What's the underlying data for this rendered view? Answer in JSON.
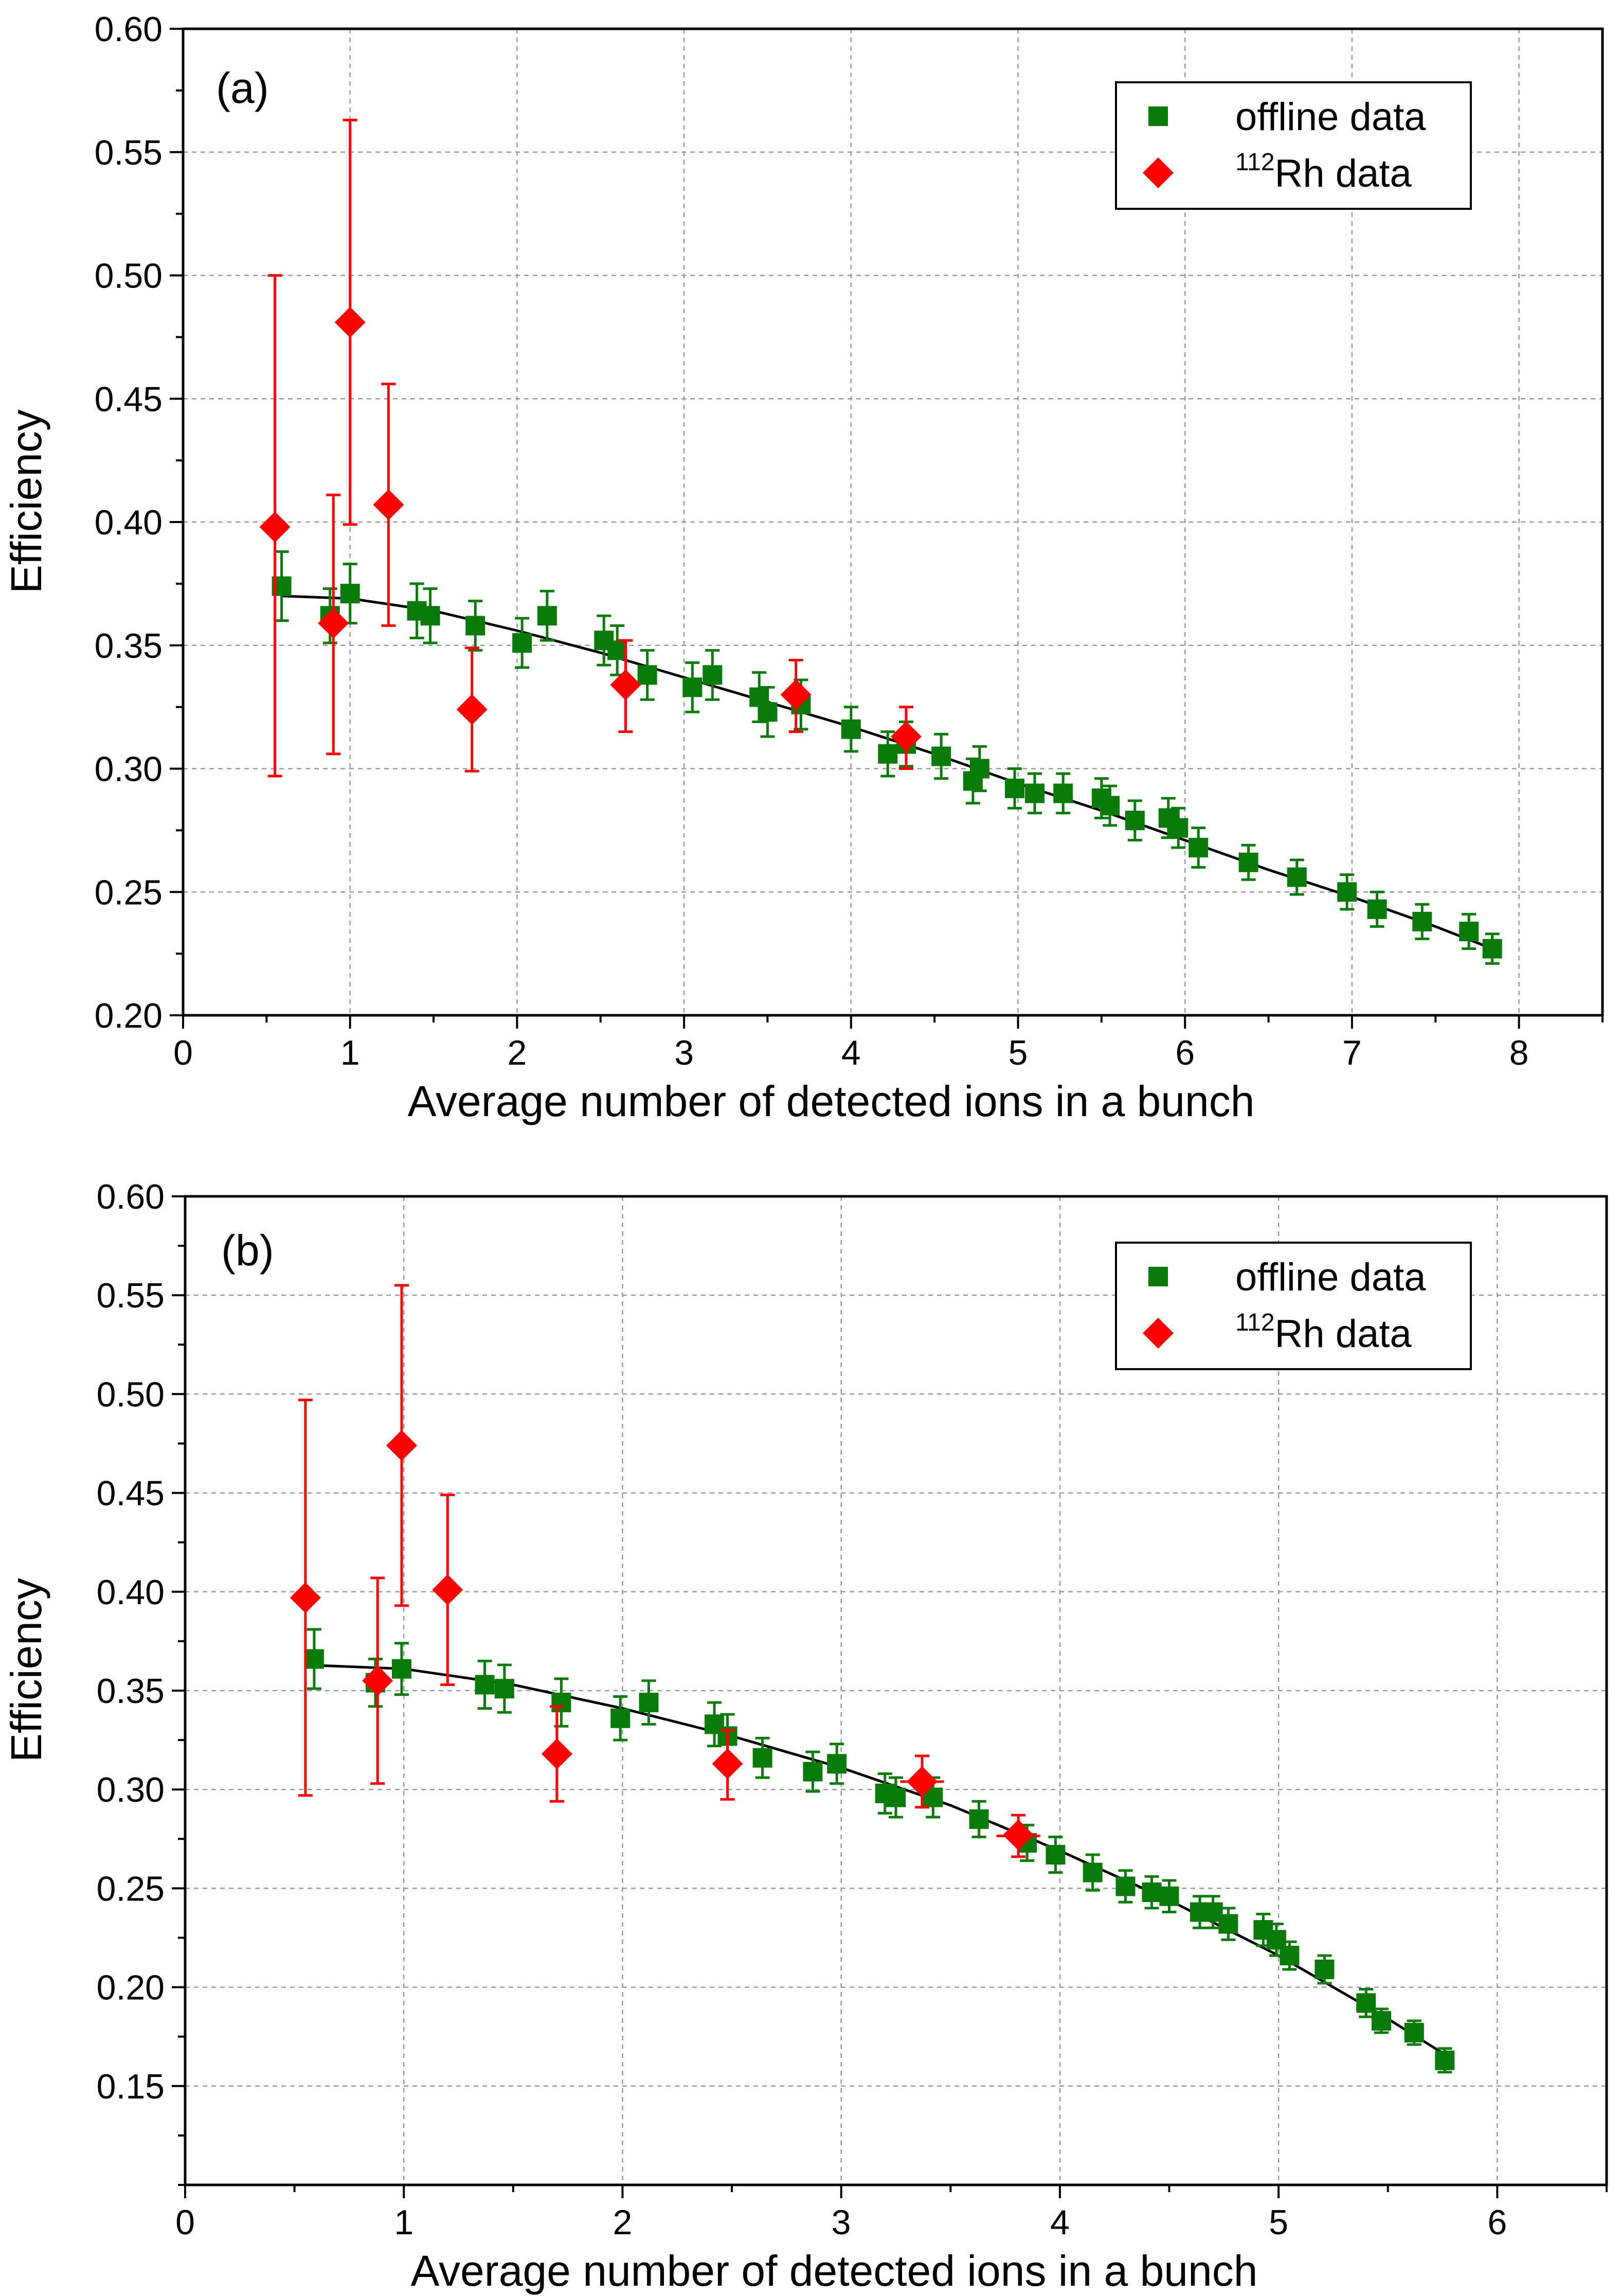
{
  "figure": {
    "panels": [
      "(a)",
      "(b)"
    ]
  },
  "colors": {
    "offline": "#0a7a0a",
    "rh": "#ff0000",
    "fit": "#000000",
    "grid": "#9a9a9a"
  },
  "chart_data": [
    {
      "type": "scatter",
      "panel_label": "(a)",
      "xlabel": "Average number of detected ions in a bunch",
      "ylabel": "Efficiency",
      "xlim": [
        0,
        8.5
      ],
      "ylim": [
        0.2,
        0.6
      ],
      "xticks": [
        0,
        1,
        2,
        3,
        4,
        5,
        6,
        7,
        8
      ],
      "xtick_labels": [
        "0",
        "1",
        "2",
        "3",
        "4",
        "5",
        "6",
        "7",
        "8"
      ],
      "yticks": [
        0.2,
        0.25,
        0.3,
        0.35,
        0.4,
        0.45,
        0.5,
        0.55,
        0.6
      ],
      "ytick_labels": [
        "0.20",
        "0.25",
        "0.30",
        "0.35",
        "0.40",
        "0.45",
        "0.50",
        "0.55",
        "0.60"
      ],
      "grid": true,
      "legend": {
        "position": "top-right",
        "entries": [
          {
            "series": "offline",
            "label": "offline data"
          },
          {
            "series": "rh",
            "sup": "112",
            "label": "Rh data"
          }
        ]
      },
      "series": [
        {
          "name": "offline data",
          "marker": "square",
          "x": [
            0.59,
            0.88,
            1.0,
            1.4,
            1.48,
            1.75,
            2.03,
            2.18,
            2.52,
            2.6,
            2.78,
            3.05,
            3.17,
            3.45,
            3.5,
            3.7,
            4.0,
            4.22,
            4.33,
            4.54,
            4.73,
            4.77,
            4.98,
            5.1,
            5.27,
            5.5,
            5.55,
            5.7,
            5.9,
            5.96,
            6.08,
            6.38,
            6.67,
            6.97,
            7.15,
            7.42,
            7.7,
            7.84
          ],
          "y": [
            0.374,
            0.362,
            0.371,
            0.364,
            0.362,
            0.358,
            0.351,
            0.362,
            0.352,
            0.348,
            0.338,
            0.333,
            0.338,
            0.329,
            0.323,
            0.326,
            0.316,
            0.306,
            0.31,
            0.305,
            0.295,
            0.3,
            0.292,
            0.29,
            0.29,
            0.288,
            0.285,
            0.279,
            0.28,
            0.276,
            0.268,
            0.262,
            0.256,
            0.25,
            0.243,
            0.238,
            0.234,
            0.227
          ],
          "yerr": [
            0.014,
            0.011,
            0.012,
            0.011,
            0.011,
            0.01,
            0.01,
            0.01,
            0.01,
            0.01,
            0.01,
            0.01,
            0.01,
            0.01,
            0.01,
            0.01,
            0.009,
            0.009,
            0.009,
            0.009,
            0.009,
            0.009,
            0.008,
            0.008,
            0.008,
            0.008,
            0.008,
            0.008,
            0.008,
            0.008,
            0.008,
            0.007,
            0.007,
            0.007,
            0.007,
            0.007,
            0.007,
            0.006
          ],
          "xerr": [
            0.0,
            0.03,
            0.03,
            0.03,
            0.03,
            0.03,
            0.03,
            0.03,
            0.03,
            0.03,
            0.03,
            0.03,
            0.03,
            0.03,
            0.03,
            0.03,
            0.03,
            0.03,
            0.03,
            0.03,
            0.03,
            0.03,
            0.03,
            0.03,
            0.03,
            0.03,
            0.03,
            0.03,
            0.03,
            0.03,
            0.03,
            0.03,
            0.03,
            0.03,
            0.03,
            0.03,
            0.03,
            0.03
          ]
        },
        {
          "name": "112Rh data",
          "marker": "diamond",
          "x": [
            0.55,
            0.9,
            1.0,
            1.23,
            1.73,
            2.65,
            3.67,
            4.33
          ],
          "y": [
            0.398,
            0.359,
            0.481,
            0.407,
            0.324,
            0.334,
            0.33,
            0.313
          ],
          "yerr_low": [
            0.101,
            0.053,
            0.082,
            0.049,
            0.025,
            0.019,
            0.015,
            0.013
          ],
          "yerr_high": [
            0.102,
            0.052,
            0.082,
            0.049,
            0.025,
            0.018,
            0.014,
            0.012
          ],
          "xerr": [
            0.0,
            0.02,
            0.0,
            0.0,
            0.04,
            0.04,
            0.08,
            0.08
          ]
        }
      ],
      "fit_curve": {
        "name": "fit",
        "x": [
          0.59,
          1.0,
          1.5,
          2.0,
          2.5,
          3.0,
          3.5,
          4.0,
          4.5,
          5.0,
          5.5,
          6.0,
          6.5,
          7.0,
          7.5,
          7.84
        ],
        "y": [
          0.37,
          0.369,
          0.364,
          0.356,
          0.347,
          0.337,
          0.327,
          0.317,
          0.306,
          0.294,
          0.283,
          0.271,
          0.259,
          0.248,
          0.236,
          0.227
        ]
      }
    },
    {
      "type": "scatter",
      "panel_label": "(b)",
      "xlabel": "Average number of detected ions in a bunch",
      "ylabel": "Efficiency",
      "xlim": [
        0,
        6.5
      ],
      "ylim": [
        0.1,
        0.6
      ],
      "xticks": [
        0,
        1,
        2,
        3,
        4,
        5,
        6
      ],
      "xtick_labels": [
        "0",
        "1",
        "2",
        "3",
        "4",
        "5",
        "6"
      ],
      "yticks": [
        0.15,
        0.2,
        0.25,
        0.3,
        0.35,
        0.4,
        0.45,
        0.5,
        0.55,
        0.6
      ],
      "ytick_labels": [
        "0.15",
        "0.20",
        "0.25",
        "0.30",
        "0.35",
        "0.40",
        "0.45",
        "0.50",
        "0.55",
        "0.60"
      ],
      "grid": true,
      "legend": {
        "position": "top-right",
        "entries": [
          {
            "series": "offline",
            "label": "offline data"
          },
          {
            "series": "rh",
            "sup": "112",
            "label": "Rh data"
          }
        ]
      },
      "series": [
        {
          "name": "offline data",
          "marker": "square",
          "x": [
            0.59,
            0.87,
            0.99,
            1.37,
            1.46,
            1.72,
            1.99,
            2.12,
            2.42,
            2.48,
            2.64,
            2.87,
            2.98,
            3.2,
            3.25,
            3.42,
            3.63,
            3.85,
            3.98,
            4.15,
            4.3,
            4.42,
            4.5,
            4.64,
            4.7,
            4.77,
            4.93,
            4.99,
            5.05,
            5.21,
            5.4,
            5.47,
            5.62,
            5.76
          ],
          "y": [
            0.366,
            0.354,
            0.361,
            0.353,
            0.351,
            0.344,
            0.336,
            0.344,
            0.333,
            0.327,
            0.316,
            0.309,
            0.313,
            0.298,
            0.296,
            0.296,
            0.285,
            0.273,
            0.267,
            0.258,
            0.251,
            0.248,
            0.246,
            0.238,
            0.238,
            0.232,
            0.229,
            0.224,
            0.216,
            0.209,
            0.192,
            0.183,
            0.177,
            0.163
          ],
          "yerr": [
            0.015,
            0.012,
            0.013,
            0.012,
            0.012,
            0.012,
            0.011,
            0.011,
            0.011,
            0.011,
            0.01,
            0.01,
            0.01,
            0.01,
            0.01,
            0.01,
            0.009,
            0.009,
            0.009,
            0.009,
            0.008,
            0.008,
            0.008,
            0.008,
            0.008,
            0.008,
            0.008,
            0.008,
            0.007,
            0.007,
            0.007,
            0.006,
            0.006,
            0.006
          ],
          "xerr": [
            0.0,
            0.03,
            0.03,
            0.03,
            0.03,
            0.03,
            0.03,
            0.03,
            0.03,
            0.03,
            0.03,
            0.03,
            0.03,
            0.03,
            0.03,
            0.03,
            0.03,
            0.03,
            0.03,
            0.03,
            0.03,
            0.03,
            0.03,
            0.03,
            0.03,
            0.03,
            0.03,
            0.03,
            0.03,
            0.03,
            0.03,
            0.03,
            0.03,
            0.03
          ]
        },
        {
          "name": "112Rh data",
          "marker": "diamond",
          "x": [
            0.55,
            0.88,
            0.99,
            1.2,
            1.7,
            2.48,
            3.37,
            3.81
          ],
          "y": [
            0.397,
            0.355,
            0.474,
            0.401,
            0.318,
            0.313,
            0.304,
            0.277
          ],
          "yerr_low": [
            0.1,
            0.052,
            0.081,
            0.048,
            0.024,
            0.018,
            0.013,
            0.011
          ],
          "yerr_high": [
            0.1,
            0.052,
            0.081,
            0.048,
            0.024,
            0.017,
            0.013,
            0.01
          ],
          "xerr": [
            0.0,
            0.02,
            0.0,
            0.0,
            0.04,
            0.04,
            0.1,
            0.1
          ]
        }
      ],
      "fit_curve": {
        "name": "fit",
        "x": [
          0.55,
          1.0,
          1.5,
          2.0,
          2.5,
          3.0,
          3.5,
          4.0,
          4.5,
          5.0,
          5.5,
          5.76
        ],
        "y": [
          0.363,
          0.361,
          0.353,
          0.341,
          0.327,
          0.311,
          0.292,
          0.269,
          0.244,
          0.216,
          0.184,
          0.166
        ]
      }
    }
  ]
}
